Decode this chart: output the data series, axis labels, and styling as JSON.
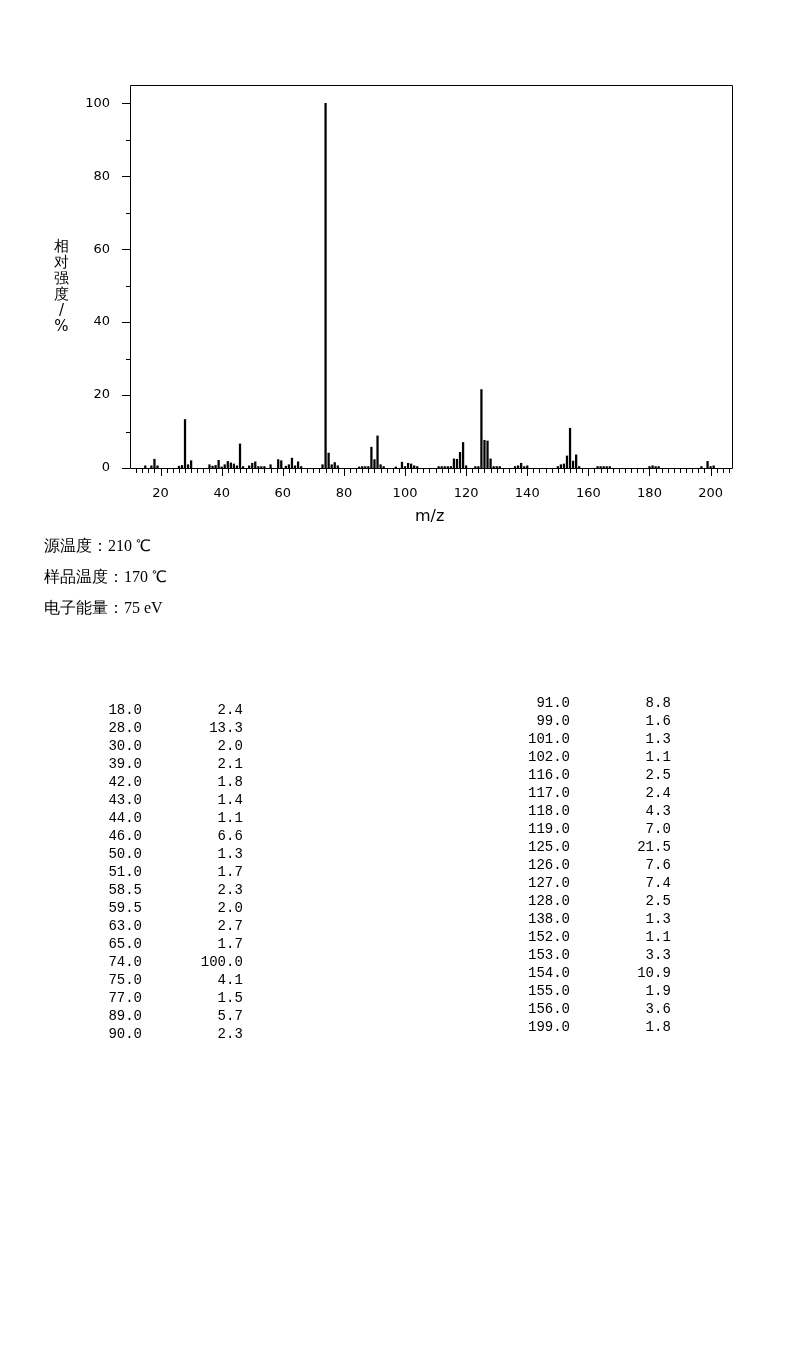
{
  "chart_data": [
    {
      "type": "bar",
      "xlabel": "m/z",
      "ylabel": "相对强度/%",
      "annotations": [
        "源温度：210 ℃",
        "样品温度：170 ℃",
        "电子能量：75 eV"
      ],
      "color": "#000000",
      "x": [
        15,
        17,
        18,
        19,
        26,
        27,
        28,
        29,
        30,
        36,
        37,
        38,
        39,
        40,
        41,
        42,
        43,
        44,
        45,
        46,
        47,
        49,
        50,
        51,
        52,
        53,
        54,
        56,
        58.5,
        59.5,
        61,
        62,
        63,
        64,
        65,
        66,
        73,
        74,
        75,
        76,
        77,
        78,
        85,
        86,
        87,
        88,
        89,
        90,
        91,
        92,
        93,
        97,
        99,
        100,
        101,
        102,
        103,
        104,
        111,
        112,
        113,
        114,
        115,
        116,
        117,
        118,
        119,
        120,
        123,
        124,
        125,
        126,
        127,
        128,
        129,
        130,
        131,
        136,
        137,
        138,
        139,
        140,
        150,
        151,
        152,
        153,
        154,
        155,
        156,
        157,
        163,
        164,
        165,
        166,
        167,
        180,
        181,
        182,
        183,
        197,
        199,
        200,
        201
      ],
      "values": [
        0.6,
        0.6,
        2.4,
        0.6,
        0.5,
        0.7,
        13.3,
        0.9,
        2.0,
        0.9,
        0.5,
        0.7,
        2.1,
        0.3,
        0.9,
        1.8,
        1.4,
        1.1,
        0.6,
        6.6,
        0.4,
        0.6,
        1.3,
        1.7,
        0.4,
        0.4,
        0.4,
        0.9,
        2.3,
        2.0,
        0.5,
        0.9,
        2.7,
        0.6,
        1.7,
        0.4,
        0.9,
        100.0,
        4.1,
        0.9,
        1.5,
        0.6,
        0.3,
        0.4,
        0.4,
        0.4,
        5.7,
        2.3,
        8.8,
        0.9,
        0.4,
        0.3,
        1.6,
        0.4,
        1.3,
        1.1,
        0.6,
        0.4,
        0.4,
        0.4,
        0.4,
        0.4,
        0.4,
        2.5,
        2.4,
        4.3,
        7.0,
        0.6,
        0.4,
        0.4,
        21.5,
        7.6,
        7.4,
        2.5,
        0.4,
        0.4,
        0.4,
        0.4,
        0.6,
        1.3,
        0.4,
        0.6,
        0.4,
        0.9,
        1.1,
        3.3,
        10.9,
        1.9,
        3.6,
        0.4,
        0.4,
        0.4,
        0.4,
        0.4,
        0.4,
        0.4,
        0.6,
        0.4,
        0.4,
        0.4,
        1.8,
        0.4,
        0.6
      ],
      "xlim": [
        10,
        207
      ],
      "xticks": [
        {
          "value": 12,
          "label": null
        },
        {
          "value": 14,
          "label": null
        },
        {
          "value": 16,
          "label": null
        },
        {
          "value": 18,
          "label": null
        },
        20,
        {
          "value": 22,
          "label": null
        },
        {
          "value": 24,
          "label": null
        },
        {
          "value": 26,
          "label": null
        },
        {
          "value": 28,
          "label": null
        },
        {
          "value": 30,
          "label": null
        },
        {
          "value": 32,
          "label": null
        },
        {
          "value": 34,
          "label": null
        },
        {
          "value": 36,
          "label": null
        },
        {
          "value": 38,
          "label": null
        },
        40,
        {
          "value": 42,
          "label": null
        },
        {
          "value": 44,
          "label": null
        },
        {
          "value": 46,
          "label": null
        },
        {
          "value": 48,
          "label": null
        },
        {
          "value": 50,
          "label": null
        },
        {
          "value": 52,
          "label": null
        },
        {
          "value": 54,
          "label": null
        },
        {
          "value": 56,
          "label": null
        },
        {
          "value": 58,
          "label": null
        },
        60,
        {
          "value": 62,
          "label": null
        },
        {
          "value": 64,
          "label": null
        },
        {
          "value": 66,
          "label": null
        },
        {
          "value": 68,
          "label": null
        },
        {
          "value": 70,
          "label": null
        },
        {
          "value": 72,
          "label": null
        },
        {
          "value": 74,
          "label": null
        },
        {
          "value": 76,
          "label": null
        },
        {
          "value": 78,
          "label": null
        },
        80,
        {
          "value": 82,
          "label": null
        },
        {
          "value": 84,
          "label": null
        },
        {
          "value": 86,
          "label": null
        },
        {
          "value": 88,
          "label": null
        },
        {
          "value": 90,
          "label": null
        },
        {
          "value": 92,
          "label": null
        },
        {
          "value": 94,
          "label": null
        },
        {
          "value": 96,
          "label": null
        },
        {
          "value": 98,
          "label": null
        },
        100,
        {
          "value": 102,
          "label": null
        },
        {
          "value": 104,
          "label": null
        },
        {
          "value": 106,
          "label": null
        },
        {
          "value": 108,
          "label": null
        },
        {
          "value": 110,
          "label": null
        },
        {
          "value": 112,
          "label": null
        },
        {
          "value": 114,
          "label": null
        },
        {
          "value": 116,
          "label": null
        },
        {
          "value": 118,
          "label": null
        },
        120,
        {
          "value": 122,
          "label": null
        },
        {
          "value": 124,
          "label": null
        },
        {
          "value": 126,
          "label": null
        },
        {
          "value": 128,
          "label": null
        },
        {
          "value": 130,
          "label": null
        },
        {
          "value": 132,
          "label": null
        },
        {
          "value": 134,
          "label": null
        },
        {
          "value": 136,
          "label": null
        },
        {
          "value": 138,
          "label": null
        },
        140,
        {
          "value": 142,
          "label": null
        },
        {
          "value": 144,
          "label": null
        },
        {
          "value": 146,
          "label": null
        },
        {
          "value": 148,
          "label": null
        },
        {
          "value": 150,
          "label": null
        },
        {
          "value": 152,
          "label": null
        },
        {
          "value": 154,
          "label": null
        },
        {
          "value": 156,
          "label": null
        },
        {
          "value": 158,
          "label": null
        },
        160,
        {
          "value": 162,
          "label": null
        },
        {
          "value": 164,
          "label": null
        },
        {
          "value": 166,
          "label": null
        },
        {
          "value": 168,
          "label": null
        },
        {
          "value": 170,
          "label": null
        },
        {
          "value": 172,
          "label": null
        },
        {
          "value": 174,
          "label": null
        },
        {
          "value": 176,
          "label": null
        },
        {
          "value": 178,
          "label": null
        },
        180,
        {
          "value": 182,
          "label": null
        },
        {
          "value": 184,
          "label": null
        },
        {
          "value": 186,
          "label": null
        },
        {
          "value": 188,
          "label": null
        },
        {
          "value": 190,
          "label": null
        },
        {
          "value": 192,
          "label": null
        },
        {
          "value": 194,
          "label": null
        },
        {
          "value": 196,
          "label": null
        },
        {
          "value": 198,
          "label": null
        },
        200,
        {
          "value": 202,
          "label": null
        },
        {
          "value": 204,
          "label": null
        },
        {
          "value": 206,
          "label": null
        }
      ],
      "ylim": [
        0,
        105
      ],
      "yticks": [
        0,
        {
          "value": 10,
          "label": null
        },
        20,
        {
          "value": 30,
          "label": null
        },
        40,
        {
          "value": 50,
          "label": null
        },
        60,
        {
          "value": 70,
          "label": null
        },
        80,
        {
          "value": 90,
          "label": null
        },
        100
      ]
    },
    {
      "type": "other",
      "annotations": [
        "18.0 2.4",
        "28.0 13.3",
        "30.0 2.0",
        "39.0 2.1",
        "42.0 1.8",
        "43.0 1.4",
        "44.0 1.1",
        "46.0 6.6",
        "50.0 1.3",
        "51.0 1.7",
        "58.5 2.3",
        "59.5 2.0",
        "63.0 2.7",
        "65.0 1.7",
        "74.0 100.0",
        "75.0 4.1",
        "77.0 1.5",
        "89.0 5.7",
        "90.0 2.3",
        "91.0 8.8",
        "99.0 1.6",
        "101.0 1.3",
        "102.0 1.1",
        "116.0 2.5",
        "117.0 2.4",
        "118.0 4.3",
        "119.0 7.0",
        "125.0 21.5",
        "126.0 7.6",
        "127.0 7.4",
        "128.0 2.5",
        "138.0 1.3",
        "152.0 1.1",
        "153.0 3.3",
        "154.0 10.9",
        "155.0 1.9",
        "156.0 3.6",
        "199.0 1.8"
      ]
    }
  ]
}
